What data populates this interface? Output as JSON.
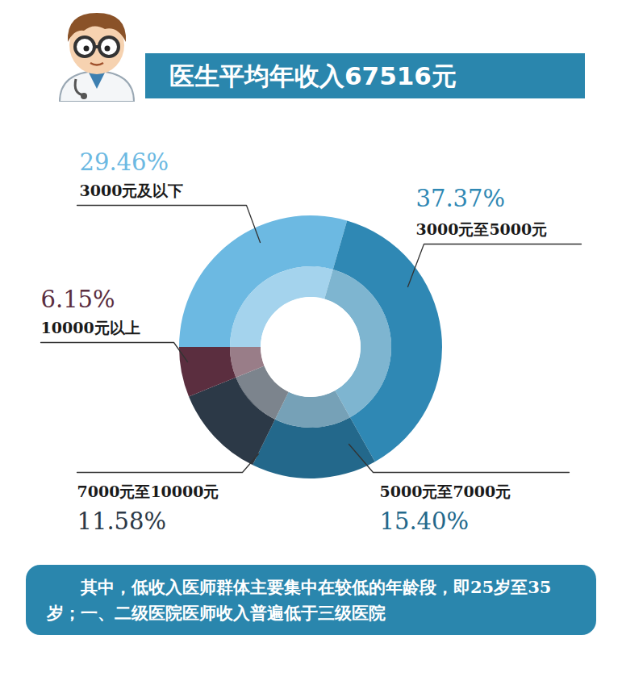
{
  "header": {
    "title": "医生平均年收入67516元"
  },
  "chart_data": {
    "type": "pie",
    "categories": [
      "3000元及以下",
      "3000元至5000元",
      "5000元至7000元",
      "7000元至10000元",
      "10000元以上"
    ],
    "values": [
      29.46,
      37.37,
      15.4,
      11.58,
      6.15
    ],
    "value_labels": [
      "29.46%",
      "37.37%",
      "15.40%",
      "11.58%",
      "6.15%"
    ],
    "colors": [
      "#6cb9e2",
      "#2f88b4",
      "#23688b",
      "#2c3947",
      "#5b2e3f"
    ],
    "data_labels": true
  },
  "note": {
    "text": "其中，低收入医师群体主要集中在较低的年龄段，即25岁至35岁；一、二级医院医师收入普遍低于三级医院"
  }
}
